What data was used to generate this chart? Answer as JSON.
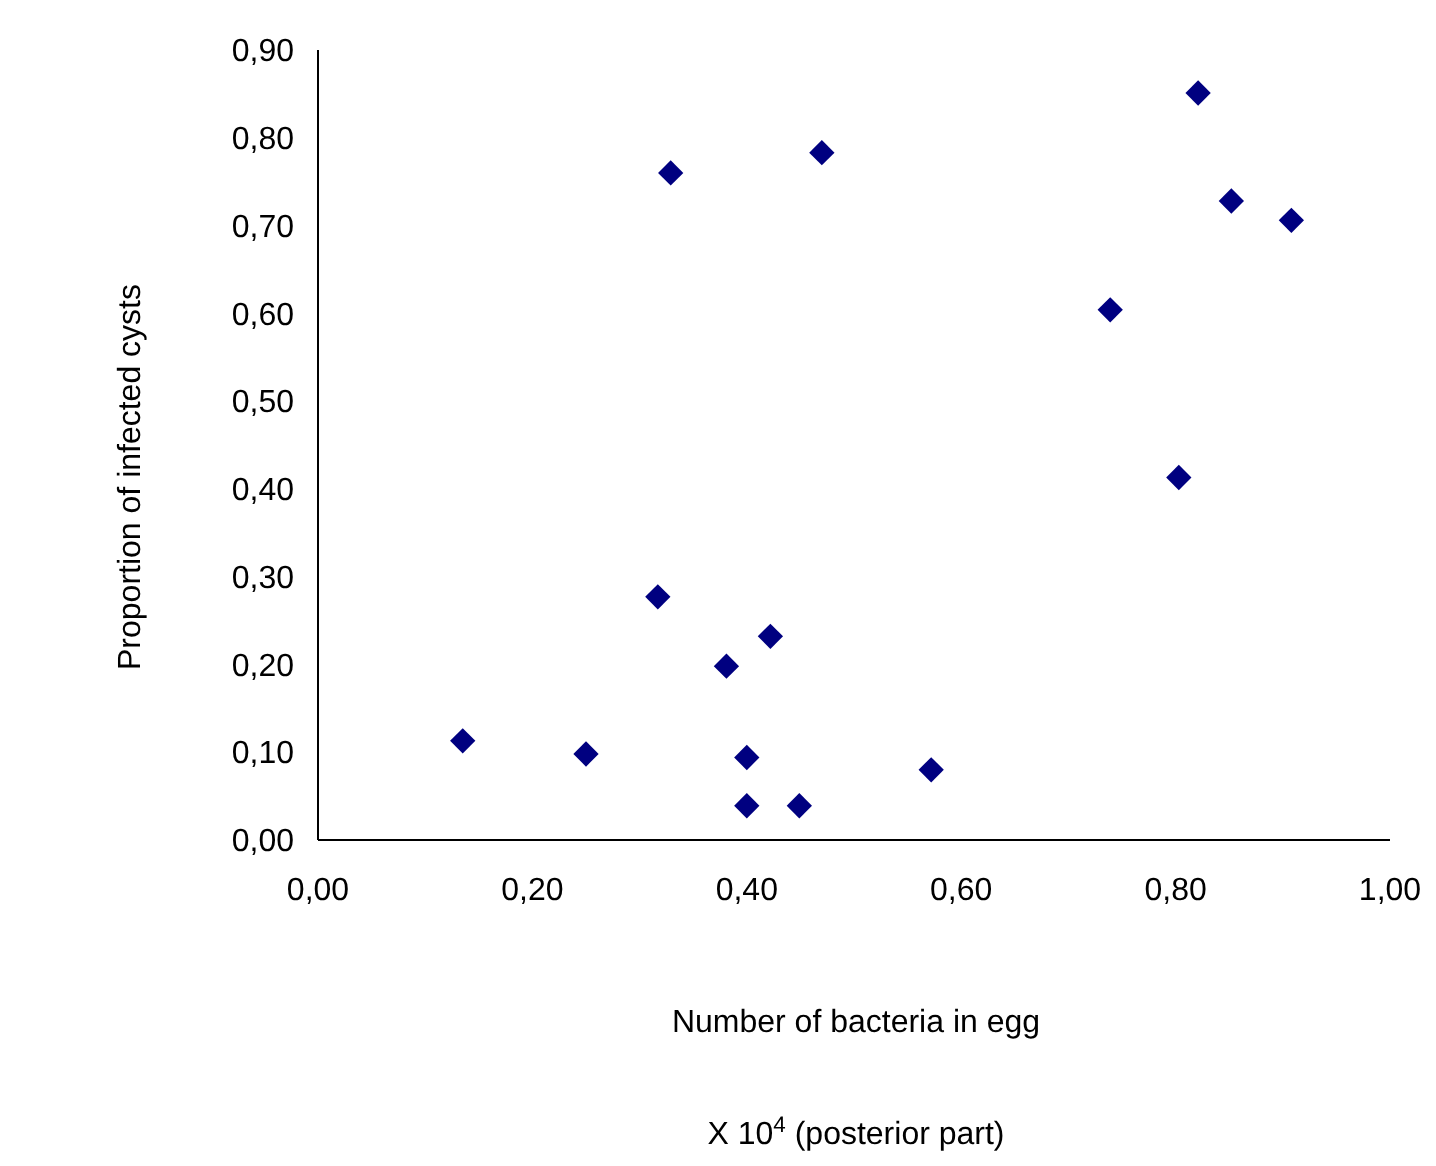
{
  "chart_data": {
    "type": "scatter",
    "xlabel": "Number of bacteria in egg",
    "ylabel": "Proportion of infected cysts",
    "annotations": [
      "X 10$^{4}$ (posterior part)"
    ],
    "x": [
      0.135,
      0.25,
      0.317,
      0.329,
      0.381,
      0.4,
      0.4,
      0.422,
      0.449,
      0.47,
      0.572,
      0.739,
      0.803,
      0.821,
      0.852,
      0.908
    ],
    "series": [
      {
        "color": "#000080",
        "values": [
          0.113,
          0.098,
          0.277,
          0.76,
          0.198,
          0.094,
          0.039,
          0.232,
          0.039,
          0.783,
          0.08,
          0.604,
          0.413,
          0.851,
          0.728,
          0.706
        ]
      }
    ],
    "marker": "diamond",
    "grid": false,
    "xlim": [
      0,
      1
    ],
    "xticks": [
      {
        "value": 0,
        "label": "0,00"
      },
      {
        "value": 0.2,
        "label": "0,20"
      },
      {
        "value": 0.4,
        "label": "0,40"
      },
      {
        "value": 0.6,
        "label": "0,60"
      },
      {
        "value": 0.8,
        "label": "0,80"
      },
      {
        "value": 1,
        "label": "1,00"
      }
    ],
    "ylim": [
      0,
      0.9
    ],
    "yticks": [
      {
        "value": 0,
        "label": "0,00"
      },
      {
        "value": 0.1,
        "label": "0,10"
      },
      {
        "value": 0.2,
        "label": "0,20"
      },
      {
        "value": 0.3,
        "label": "0,30"
      },
      {
        "value": 0.4,
        "label": "0,40"
      },
      {
        "value": 0.5,
        "label": "0,50"
      },
      {
        "value": 0.6,
        "label": "0,60"
      },
      {
        "value": 0.7,
        "label": "0,70"
      },
      {
        "value": 0.8,
        "label": "0,80"
      },
      {
        "value": 0.9,
        "label": "0,90"
      }
    ]
  }
}
